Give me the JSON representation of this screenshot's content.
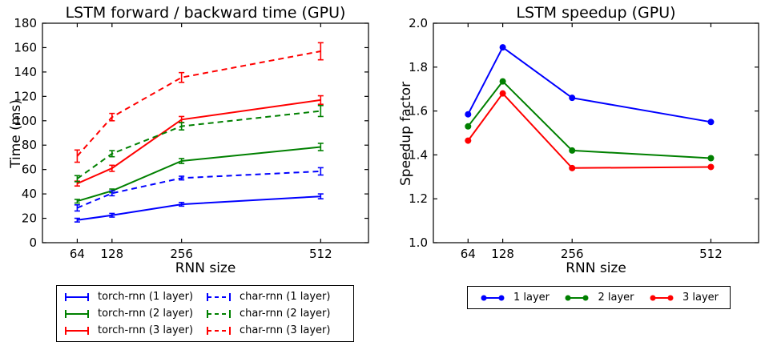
{
  "figure": {
    "background": "#ffffff",
    "frame_color": "#000000"
  },
  "chart_data": [
    {
      "id": "lstm-time",
      "type": "line",
      "title": "LSTM forward / backward time (GPU)",
      "xlabel": "RNN size",
      "ylabel": "Time (ms)",
      "x": [
        64,
        128,
        256,
        512
      ],
      "xlim": [
        0,
        600
      ],
      "ylim": [
        0,
        180
      ],
      "xticks": [
        64,
        128,
        256,
        512
      ],
      "xtick_labels": [
        "64",
        "128",
        "256",
        "512"
      ],
      "yticks": [
        0,
        20,
        40,
        60,
        80,
        100,
        120,
        140,
        160,
        180
      ],
      "ytick_labels": [
        "0",
        "20",
        "40",
        "60",
        "80",
        "100",
        "120",
        "140",
        "160",
        "180"
      ],
      "grid": false,
      "legend_position": "below-two-columns",
      "series": [
        {
          "name": "torch-rnn (1 layer)",
          "color": "#0000ff",
          "dash": false,
          "marker": "errorbar",
          "values": [
            18.5,
            22.5,
            31.5,
            38
          ],
          "err": [
            1.5,
            1.5,
            1.5,
            2
          ]
        },
        {
          "name": "torch-rnn (2 layer)",
          "color": "#008000",
          "dash": false,
          "marker": "errorbar",
          "values": [
            34,
            42.5,
            67,
            78.5
          ],
          "err": [
            1.5,
            1.5,
            2,
            3
          ]
        },
        {
          "name": "torch-rnn (3 layer)",
          "color": "#ff0000",
          "dash": false,
          "marker": "errorbar",
          "values": [
            48.5,
            61,
            101,
            117
          ],
          "err": [
            2,
            2.5,
            2.5,
            3.5
          ]
        },
        {
          "name": "char-rnn (1 layer)",
          "color": "#0000ff",
          "dash": true,
          "marker": "errorbar",
          "values": [
            28.5,
            40.5,
            53,
            58.5
          ],
          "err": [
            2.5,
            2,
            1.5,
            3
          ]
        },
        {
          "name": "char-rnn (2 layer)",
          "color": "#008000",
          "dash": true,
          "marker": "errorbar",
          "values": [
            52.5,
            73,
            95.5,
            108
          ],
          "err": [
            2.5,
            2.5,
            3,
            4.5
          ]
        },
        {
          "name": "char-rnn (3 layer)",
          "color": "#ff0000",
          "dash": true,
          "marker": "errorbar",
          "values": [
            71,
            103,
            135.5,
            157
          ],
          "err": [
            5,
            3,
            4,
            7
          ]
        }
      ],
      "legend_order": [
        0,
        3,
        1,
        4,
        2,
        5
      ]
    },
    {
      "id": "lstm-speedup",
      "type": "line",
      "title": "LSTM speedup (GPU)",
      "xlabel": "RNN size",
      "ylabel": "Speedup factor",
      "x": [
        64,
        128,
        256,
        512
      ],
      "xlim": [
        0,
        600
      ],
      "ylim": [
        1.0,
        2.0
      ],
      "xticks": [
        64,
        128,
        256,
        512
      ],
      "xtick_labels": [
        "64",
        "128",
        "256",
        "512"
      ],
      "yticks": [
        1.0,
        1.2,
        1.4,
        1.6,
        1.8,
        2.0
      ],
      "ytick_labels": [
        "1.0",
        "1.2",
        "1.4",
        "1.6",
        "1.8",
        "2.0"
      ],
      "grid": false,
      "legend_position": "below-one-row",
      "series": [
        {
          "name": "1 layer",
          "color": "#0000ff",
          "dash": false,
          "marker": "circle",
          "values": [
            1.585,
            1.89,
            1.66,
            1.55
          ]
        },
        {
          "name": "2 layer",
          "color": "#008000",
          "dash": false,
          "marker": "circle",
          "values": [
            1.53,
            1.735,
            1.42,
            1.385
          ]
        },
        {
          "name": "3 layer",
          "color": "#ff0000",
          "dash": false,
          "marker": "circle",
          "values": [
            1.465,
            1.68,
            1.34,
            1.345
          ]
        }
      ],
      "legend_order": [
        0,
        1,
        2
      ]
    }
  ]
}
